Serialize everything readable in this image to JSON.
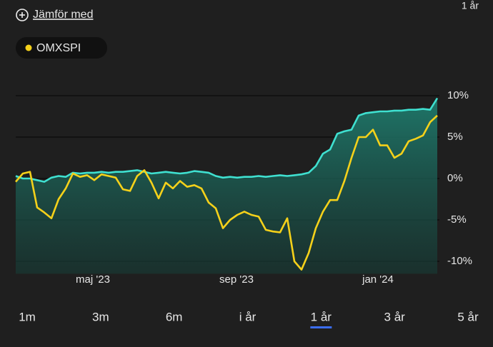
{
  "ui": {
    "compare": "Jämför med",
    "period_label": "1 år",
    "periods": [
      "1m",
      "3m",
      "6m",
      "i år",
      "1 år",
      "3 år",
      "5 år"
    ],
    "selected": 4
  },
  "chart_data": {
    "type": "line",
    "x": [
      0,
      0.2,
      0.4,
      0.6,
      0.8,
      1,
      1.2,
      1.4,
      1.6,
      1.8,
      2,
      2.2,
      2.4,
      2.6,
      2.8,
      3,
      3.2,
      3.4,
      3.6,
      3.8,
      4,
      4.2,
      4.4,
      4.6,
      4.8,
      5,
      5.2,
      5.4,
      5.6,
      5.8,
      6,
      6.2,
      6.4,
      6.6,
      6.8,
      7,
      7.2,
      7.4,
      7.6,
      7.8,
      8,
      8.2,
      8.4,
      8.6,
      8.8,
      9,
      9.2,
      9.4,
      9.6,
      9.8,
      10,
      10.2,
      10.4,
      10.6,
      10.8,
      11,
      11.2,
      11.4,
      11.6,
      11.8
    ],
    "series": [
      {
        "color": "#3fe0d0",
        "area": true,
        "values": [
          0.3,
          0.0,
          0.0,
          -0.2,
          -0.4,
          0.1,
          0.3,
          0.2,
          0.7,
          0.6,
          0.7,
          0.7,
          0.8,
          0.7,
          0.8,
          0.8,
          0.9,
          1.0,
          0.8,
          0.6,
          0.7,
          0.8,
          0.7,
          0.6,
          0.7,
          0.9,
          0.8,
          0.7,
          0.3,
          0.1,
          0.2,
          0.1,
          0.2,
          0.2,
          0.3,
          0.2,
          0.3,
          0.4,
          0.3,
          0.4,
          0.5,
          0.7,
          1.5,
          3.0,
          3.5,
          5.4,
          5.7,
          5.9,
          7.6,
          7.9,
          8.0,
          8.1,
          8.1,
          8.2,
          8.2,
          8.3,
          8.3,
          8.4,
          8.3,
          9.7
        ]
      },
      {
        "name": "OMXSPI",
        "color": "#f5d11a",
        "values": [
          -0.4,
          0.6,
          0.8,
          -3.5,
          -4.1,
          -4.8,
          -2.5,
          -1.2,
          0.6,
          0.2,
          0.4,
          -0.2,
          0.5,
          0.3,
          0.1,
          -1.3,
          -1.5,
          0.3,
          1.0,
          -0.5,
          -2.4,
          -0.5,
          -1.2,
          -0.3,
          -1.0,
          -0.8,
          -1.2,
          -2.9,
          -3.6,
          -6.0,
          -5.0,
          -4.4,
          -4.0,
          -4.4,
          -4.6,
          -6.2,
          -6.4,
          -6.5,
          -4.8,
          -10.0,
          -11.0,
          -9.0,
          -6.0,
          -4.0,
          -2.6,
          -2.6,
          -0.3,
          2.5,
          5.0,
          5.0,
          5.9,
          4.0,
          4.0,
          2.5,
          3.0,
          4.5,
          4.8,
          5.2,
          6.8,
          7.6
        ]
      }
    ],
    "xlim": [
      0,
      11.86
    ],
    "xticks": [
      {
        "value": 2.16,
        "label": "maj '23"
      },
      {
        "value": 6.18,
        "label": "sep '23"
      },
      {
        "value": 10.14,
        "label": "jan '24"
      }
    ],
    "ylim": [
      -11.5,
      11
    ],
    "yticks": [
      {
        "value": 10,
        "label": "10%"
      },
      {
        "value": 5,
        "label": "5%"
      },
      {
        "value": 0,
        "label": "0%"
      },
      {
        "value": -5,
        "label": "-5%"
      },
      {
        "value": -10,
        "label": "-10%"
      }
    ],
    "grid": true
  }
}
